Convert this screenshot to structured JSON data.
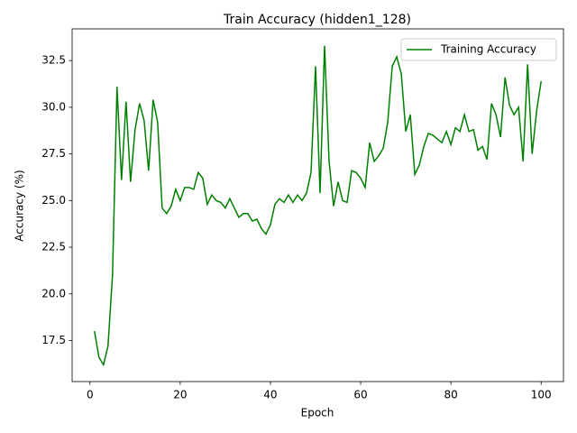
{
  "chart_data": {
    "type": "line",
    "title": "Train Accuracy (hidden1_128)",
    "x_label": "Epoch",
    "y_label": "Accuracy (%)",
    "x": [
      1,
      2,
      3,
      4,
      5,
      6,
      7,
      8,
      9,
      10,
      11,
      12,
      13,
      14,
      15,
      16,
      17,
      18,
      19,
      20,
      21,
      22,
      23,
      24,
      25,
      26,
      27,
      28,
      29,
      30,
      31,
      32,
      33,
      34,
      35,
      36,
      37,
      38,
      39,
      40,
      41,
      42,
      43,
      44,
      45,
      46,
      47,
      48,
      49,
      50,
      51,
      52,
      53,
      54,
      55,
      56,
      57,
      58,
      59,
      60,
      61,
      62,
      63,
      64,
      65,
      66,
      67,
      68,
      69,
      70,
      71,
      72,
      73,
      74,
      75,
      76,
      77,
      78,
      79,
      80,
      81,
      82,
      83,
      84,
      85,
      86,
      87,
      88,
      89,
      90,
      91,
      92,
      93,
      94,
      95,
      96,
      97,
      98,
      99,
      100
    ],
    "series": [
      {
        "name": "Training Accuracy",
        "color": "#008000",
        "values": [
          18.0,
          16.6,
          16.2,
          17.2,
          21.0,
          31.1,
          26.1,
          30.3,
          26.0,
          28.8,
          30.2,
          29.3,
          26.6,
          30.4,
          29.2,
          24.6,
          24.3,
          24.7,
          25.6,
          25.0,
          25.7,
          25.7,
          25.6,
          26.5,
          26.2,
          24.8,
          25.3,
          25.0,
          24.9,
          24.6,
          25.1,
          24.6,
          24.1,
          24.3,
          24.3,
          23.9,
          24.0,
          23.5,
          23.2,
          23.7,
          24.8,
          25.1,
          24.9,
          25.3,
          24.9,
          25.3,
          25.0,
          25.4,
          26.5,
          32.2,
          25.4,
          33.3,
          27.1,
          24.7,
          26.0,
          25.0,
          24.9,
          26.6,
          26.5,
          26.2,
          25.7,
          28.1,
          27.1,
          27.4,
          27.8,
          29.2,
          32.2,
          32.7,
          31.8,
          28.7,
          29.6,
          26.4,
          26.9,
          27.9,
          28.6,
          28.5,
          28.3,
          28.1,
          28.7,
          28.0,
          28.9,
          28.7,
          29.6,
          28.7,
          28.8,
          27.7,
          27.9,
          27.2,
          30.2,
          29.6,
          28.4,
          31.6,
          30.1,
          29.6,
          30.0,
          27.1,
          32.3,
          27.5,
          29.8,
          31.4
        ]
      }
    ],
    "xlim": [
      -3.95,
      104.95
    ],
    "xticks": [
      0,
      20,
      40,
      60,
      80,
      100
    ],
    "ylim": [
      15.3,
      34.2
    ],
    "yticks": [
      17.5,
      {
        "value": 20,
        "label": "20.0"
      },
      22.5,
      {
        "value": 25,
        "label": "25.0"
      },
      27.5,
      {
        "value": 30,
        "label": "30.0"
      },
      32.5
    ],
    "legend_position": "upper right"
  }
}
